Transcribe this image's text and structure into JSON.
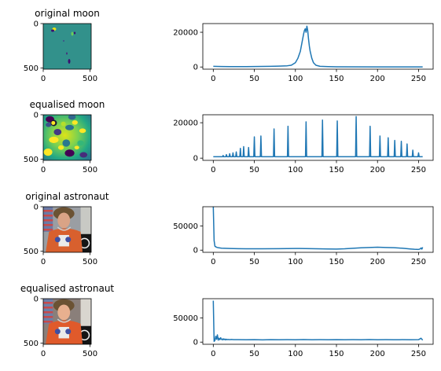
{
  "chart_data": [
    {
      "type": "image",
      "title": "original moon",
      "image_kind": "moon",
      "x_ticks": [
        0,
        500
      ],
      "y_ticks": [
        0,
        500
      ],
      "xlim": [
        0,
        512
      ],
      "ylim": [
        512,
        0
      ]
    },
    {
      "type": "line",
      "title": "",
      "color": "#1f77b4",
      "xlim": [
        -12.75,
        267.75
      ],
      "ylim": [
        -1250,
        25000
      ],
      "x_ticks": [
        0,
        50,
        100,
        150,
        200,
        250
      ],
      "y_ticks": [
        0,
        20000
      ],
      "x": [
        0,
        10,
        20,
        30,
        40,
        50,
        60,
        70,
        80,
        90,
        95,
        100,
        103,
        106,
        108,
        110,
        111,
        112,
        113,
        114,
        115,
        116,
        117,
        118,
        120,
        122,
        125,
        130,
        140,
        150,
        200,
        255
      ],
      "y": [
        400,
        300,
        250,
        250,
        250,
        300,
        350,
        400,
        500,
        700,
        1000,
        2500,
        5000,
        9000,
        14000,
        19000,
        21000,
        22000,
        20000,
        23500,
        21000,
        16000,
        12000,
        9000,
        5000,
        2500,
        1000,
        400,
        200,
        100,
        50,
        30
      ]
    },
    {
      "type": "image",
      "title": "equalised moon",
      "image_kind": "moon-eq",
      "x_ticks": [
        0,
        500
      ],
      "y_ticks": [
        0,
        500
      ],
      "xlim": [
        0,
        512
      ],
      "ylim": [
        512,
        0
      ]
    },
    {
      "type": "line",
      "title": "",
      "color": "#1f77b4",
      "xlim": [
        -12.75,
        267.75
      ],
      "ylim": [
        -1250,
        24500
      ],
      "x_ticks": [
        0,
        50,
        100,
        150,
        200,
        250
      ],
      "y_ticks": [
        0,
        20000
      ],
      "baseline": 800,
      "spike_width": 1.4,
      "spikes": [
        {
          "x": 12,
          "y": 1500
        },
        {
          "x": 16,
          "y": 2000
        },
        {
          "x": 20,
          "y": 2500
        },
        {
          "x": 24,
          "y": 3000
        },
        {
          "x": 28,
          "y": 3500
        },
        {
          "x": 33,
          "y": 5500
        },
        {
          "x": 37,
          "y": 6500
        },
        {
          "x": 43,
          "y": 6000
        },
        {
          "x": 50,
          "y": 12000
        },
        {
          "x": 58,
          "y": 12500
        },
        {
          "x": 74,
          "y": 16500
        },
        {
          "x": 91,
          "y": 18000
        },
        {
          "x": 113,
          "y": 20500
        },
        {
          "x": 133,
          "y": 21500
        },
        {
          "x": 151,
          "y": 21000
        },
        {
          "x": 174,
          "y": 23500
        },
        {
          "x": 191,
          "y": 18000
        },
        {
          "x": 203,
          "y": 12500
        },
        {
          "x": 213,
          "y": 11500
        },
        {
          "x": 221,
          "y": 10000
        },
        {
          "x": 229,
          "y": 9500
        },
        {
          "x": 236,
          "y": 8000
        },
        {
          "x": 243,
          "y": 4500
        },
        {
          "x": 250,
          "y": 3000
        }
      ]
    },
    {
      "type": "image",
      "title": "original astronaut",
      "image_kind": "astronaut",
      "x_ticks": [
        0,
        500
      ],
      "y_ticks": [
        0,
        500
      ],
      "xlim": [
        0,
        512
      ],
      "ylim": [
        512,
        0
      ]
    },
    {
      "type": "line",
      "title": "",
      "color": "#1f77b4",
      "xlim": [
        -12.75,
        267.75
      ],
      "ylim": [
        -4500,
        90000
      ],
      "x_ticks": [
        0,
        50,
        100,
        150,
        200,
        250
      ],
      "y_ticks": [
        0,
        50000
      ],
      "x": [
        0,
        1,
        2,
        4,
        6,
        10,
        20,
        30,
        40,
        60,
        80,
        100,
        120,
        140,
        150,
        160,
        170,
        180,
        190,
        200,
        210,
        220,
        230,
        240,
        245,
        250,
        252,
        253,
        254,
        255
      ],
      "y": [
        90000,
        20000,
        8000,
        6000,
        5000,
        4000,
        3500,
        3000,
        2800,
        2800,
        3000,
        3500,
        3000,
        2500,
        2300,
        2800,
        3800,
        4800,
        5500,
        6000,
        5500,
        5000,
        4000,
        2500,
        1800,
        1500,
        2500,
        4500,
        2000,
        6000
      ]
    },
    {
      "type": "image",
      "title": "equalised astronaut",
      "image_kind": "astronaut-eq",
      "x_ticks": [
        0,
        500
      ],
      "y_ticks": [
        0,
        500
      ],
      "xlim": [
        0,
        512
      ],
      "ylim": [
        512,
        0
      ]
    },
    {
      "type": "line",
      "title": "",
      "color": "#1f77b4",
      "xlim": [
        -12.75,
        267.75
      ],
      "ylim": [
        -4500,
        90000
      ],
      "x_ticks": [
        0,
        50,
        100,
        150,
        200,
        250
      ],
      "y_ticks": [
        0,
        50000
      ],
      "x": [
        0,
        1,
        2,
        3,
        4,
        5,
        6,
        7,
        8,
        9,
        10,
        11,
        12,
        13,
        14,
        15,
        16,
        17,
        18,
        20,
        22,
        25,
        30,
        40,
        50,
        60,
        70,
        80,
        90,
        100,
        110,
        120,
        130,
        140,
        150,
        160,
        170,
        180,
        190,
        200,
        210,
        220,
        230,
        240,
        250,
        253,
        255
      ],
      "y": [
        86000,
        1500,
        3500,
        12000,
        6000,
        15000,
        4000,
        8000,
        5000,
        9000,
        6000,
        4500,
        7000,
        5000,
        6500,
        4500,
        6000,
        5000,
        5500,
        5000,
        5500,
        5000,
        5000,
        4800,
        5000,
        4700,
        5100,
        4900,
        5000,
        4800,
        5200,
        4900,
        5000,
        4800,
        5100,
        4900,
        5000,
        4800,
        5200,
        4900,
        5000,
        4800,
        5000,
        4900,
        5000,
        8000,
        4000
      ]
    }
  ]
}
